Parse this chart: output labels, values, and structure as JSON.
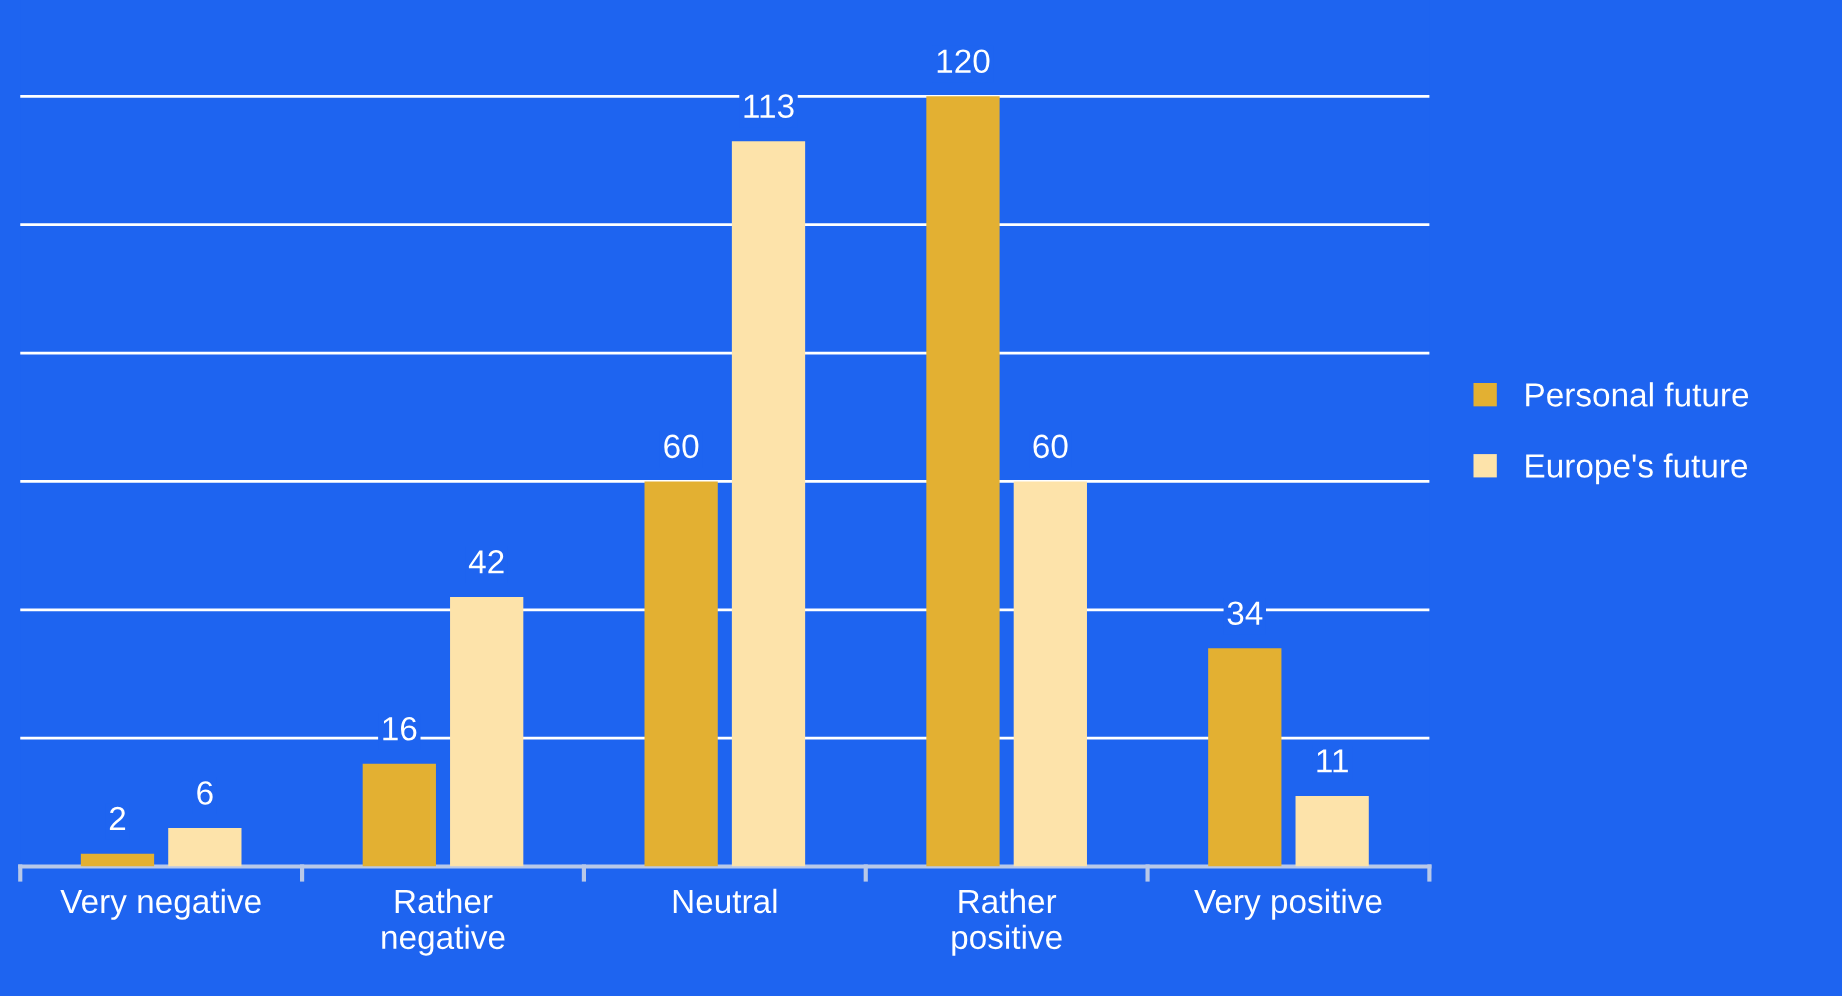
{
  "chart_data": {
    "type": "bar",
    "categories": [
      "Very negative",
      "Rather\nnegative",
      "Neutral",
      "Rather\npositive",
      "Very positive"
    ],
    "series": [
      {
        "name": "Personal future",
        "color": "#e3b032",
        "values": [
          2,
          16,
          60,
          120,
          34
        ]
      },
      {
        "name": "Europe's future",
        "color": "#fde3aa",
        "values": [
          6,
          42,
          113,
          60,
          11
        ]
      }
    ],
    "ylim": [
      0,
      135
    ],
    "yticks": [
      {
        "value": 0,
        "label": null
      },
      {
        "value": 20,
        "label": null
      },
      {
        "value": 40,
        "label": null
      },
      {
        "value": 60,
        "label": null
      },
      {
        "value": 80,
        "label": null
      },
      {
        "value": 100,
        "label": null
      },
      {
        "value": 120,
        "label": null
      }
    ],
    "grid": "y",
    "legend": "right",
    "data_labels": true,
    "tick_labels": "x"
  }
}
